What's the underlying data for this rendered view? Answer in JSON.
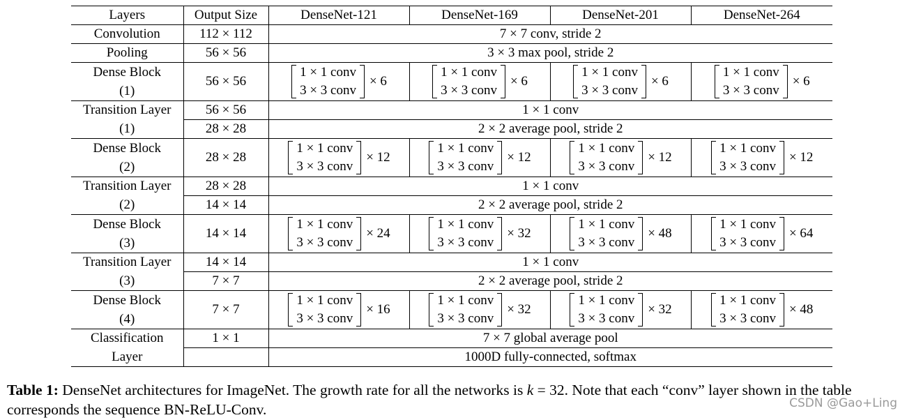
{
  "header": [
    "Layers",
    "Output Size",
    "DenseNet-121",
    "DenseNet-169",
    "DenseNet-201",
    "DenseNet-264"
  ],
  "rows": {
    "conv": {
      "layer": "Convolution",
      "size": "112 × 112",
      "desc": "7 × 7 conv, stride 2"
    },
    "pool": {
      "layer": "Pooling",
      "size": "56 × 56",
      "desc": "3 × 3 max pool, stride 2"
    },
    "db1": {
      "layer1": "Dense Block",
      "layer2": "(1)",
      "size": "56 × 56",
      "line1": "1 × 1 conv",
      "line2": "3 × 3 conv",
      "mult": [
        "× 6",
        "× 6",
        "× 6",
        "× 6"
      ]
    },
    "tl1": {
      "layer1": "Transition Layer",
      "layer2": "(1)",
      "size1": "56 × 56",
      "desc1": "1 × 1 conv",
      "size2": "28 × 28",
      "desc2": "2 × 2 average pool, stride 2"
    },
    "db2": {
      "layer1": "Dense Block",
      "layer2": "(2)",
      "size": "28 × 28",
      "line1": "1 × 1 conv",
      "line2": "3 × 3 conv",
      "mult": [
        "× 12",
        "× 12",
        "× 12",
        "× 12"
      ]
    },
    "tl2": {
      "layer1": "Transition Layer",
      "layer2": "(2)",
      "size1": "28 × 28",
      "desc1": "1 × 1 conv",
      "size2": "14 × 14",
      "desc2": "2 × 2 average pool, stride 2"
    },
    "db3": {
      "layer1": "Dense Block",
      "layer2": "(3)",
      "size": "14 × 14",
      "line1": "1 × 1 conv",
      "line2": "3 × 3 conv",
      "mult": [
        "× 24",
        "× 32",
        "× 48",
        "× 64"
      ]
    },
    "tl3": {
      "layer1": "Transition Layer",
      "layer2": "(3)",
      "size1": "14 × 14",
      "desc1": "1 × 1 conv",
      "size2": "7 × 7",
      "desc2": "2 × 2 average pool, stride 2"
    },
    "db4": {
      "layer1": "Dense Block",
      "layer2": "(4)",
      "size": "7 × 7",
      "line1": "1 × 1 conv",
      "line2": "3 × 3 conv",
      "mult": [
        "× 16",
        "× 32",
        "× 32",
        "× 48"
      ]
    },
    "cls": {
      "layer1": "Classification",
      "layer2": "Layer",
      "size1": "1 × 1",
      "desc1": "7 × 7 global average pool",
      "size2": "",
      "desc2": "1000D fully-connected, softmax"
    }
  },
  "caption": {
    "label": "Table 1:",
    "text_before": " DenseNet architectures for ImageNet. The growth rate for all the networks is ",
    "k": "k",
    "text_eq": " = 32. Note that each “conv” layer shown in the table corresponds the sequence BN-ReLU-Conv."
  },
  "watermark": "CSDN @Gao+Ling"
}
